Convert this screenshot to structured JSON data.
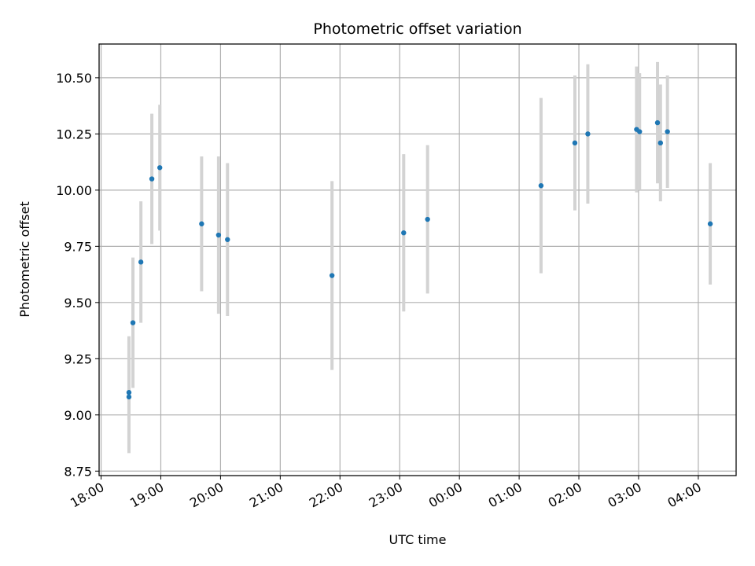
{
  "chart_data": {
    "type": "scatter",
    "title": "Photometric offset variation",
    "xlabel": "UTC time",
    "ylabel": "Photometric offset",
    "xlim": [
      "2000-01-01T17:58",
      "2000-01-02T04:38"
    ],
    "ylim": [
      8.73,
      10.65
    ],
    "x_ticks": [
      {
        "time": "2000-01-01T18:00",
        "label": "18:00"
      },
      {
        "time": "2000-01-01T19:00",
        "label": "19:00"
      },
      {
        "time": "2000-01-01T20:00",
        "label": "20:00"
      },
      {
        "time": "2000-01-01T21:00",
        "label": "21:00"
      },
      {
        "time": "2000-01-01T22:00",
        "label": "22:00"
      },
      {
        "time": "2000-01-01T23:00",
        "label": "23:00"
      },
      {
        "time": "2000-01-02T00:00",
        "label": "00:00"
      },
      {
        "time": "2000-01-02T01:00",
        "label": "01:00"
      },
      {
        "time": "2000-01-02T02:00",
        "label": "02:00"
      },
      {
        "time": "2000-01-02T03:00",
        "label": "03:00"
      },
      {
        "time": "2000-01-02T04:00",
        "label": "04:00"
      }
    ],
    "y_ticks": [
      {
        "value": 8.75,
        "label": "8.75"
      },
      {
        "value": 9.0,
        "label": "9.00"
      },
      {
        "value": 9.25,
        "label": "9.25"
      },
      {
        "value": 9.5,
        "label": "9.50"
      },
      {
        "value": 9.75,
        "label": "9.75"
      },
      {
        "value": 10.0,
        "label": "10.00"
      },
      {
        "value": 10.25,
        "label": "10.25"
      },
      {
        "value": 10.5,
        "label": "10.50"
      }
    ],
    "grid": true,
    "legend": "none",
    "colors": {
      "marker": "#1f77b4",
      "errorbar": "#d3d3d3",
      "grid": "#b0b0b0"
    },
    "series": [
      {
        "points": [
          {
            "time": "2000-01-01T18:28",
            "y": 9.1,
            "err": 0.25
          },
          {
            "time": "2000-01-01T18:28",
            "y": 9.08,
            "err": 0.25
          },
          {
            "time": "2000-01-01T18:32",
            "y": 9.41,
            "err": 0.29
          },
          {
            "time": "2000-01-01T18:40",
            "y": 9.68,
            "err": 0.27
          },
          {
            "time": "2000-01-01T18:51",
            "y": 10.05,
            "err": 0.29
          },
          {
            "time": "2000-01-01T18:59",
            "y": 10.1,
            "err": 0.28
          },
          {
            "time": "2000-01-01T19:41",
            "y": 9.85,
            "err": 0.3
          },
          {
            "time": "2000-01-01T19:58",
            "y": 9.8,
            "err": 0.35
          },
          {
            "time": "2000-01-01T20:07",
            "y": 9.78,
            "err": 0.34
          },
          {
            "time": "2000-01-01T21:52",
            "y": 9.62,
            "err": 0.42
          },
          {
            "time": "2000-01-01T23:04",
            "y": 9.81,
            "err": 0.35
          },
          {
            "time": "2000-01-01T23:28",
            "y": 9.87,
            "err": 0.33
          },
          {
            "time": "2000-01-02T01:22",
            "y": 10.02,
            "err": 0.39
          },
          {
            "time": "2000-01-02T01:56",
            "y": 10.21,
            "err": 0.3
          },
          {
            "time": "2000-01-02T02:09",
            "y": 10.25,
            "err": 0.31
          },
          {
            "time": "2000-01-02T02:58",
            "y": 10.27,
            "err": 0.28
          },
          {
            "time": "2000-01-02T03:01",
            "y": 10.26,
            "err": 0.26
          },
          {
            "time": "2000-01-02T03:19",
            "y": 10.3,
            "err": 0.27
          },
          {
            "time": "2000-01-02T03:22",
            "y": 10.21,
            "err": 0.26
          },
          {
            "time": "2000-01-02T03:29",
            "y": 10.26,
            "err": 0.25
          },
          {
            "time": "2000-01-02T04:12",
            "y": 9.85,
            "err": 0.27
          }
        ]
      }
    ]
  }
}
